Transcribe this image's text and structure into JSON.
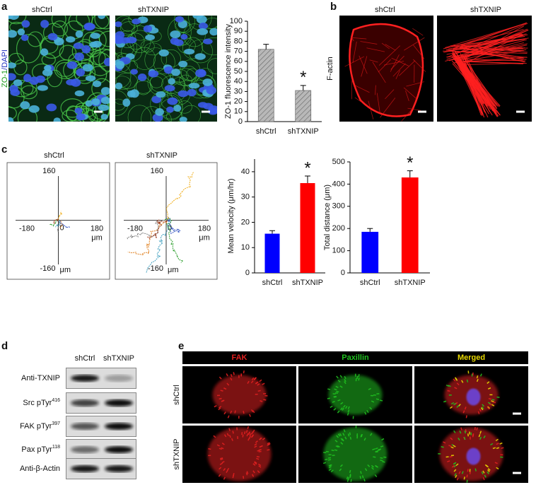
{
  "panel_letters": [
    "a",
    "b",
    "c",
    "d",
    "e"
  ],
  "panel_a": {
    "stain": [
      {
        "text": "ZO-1",
        "color": "#1a9a1a"
      },
      {
        "text": "/DAPI",
        "color": "#2030c0"
      }
    ],
    "image_labels": [
      "shCtrl",
      "shTXNIP"
    ]
  },
  "panel_b": {
    "stain": "F-actin",
    "image_labels": [
      "shCtrl",
      "shTXNIP"
    ]
  },
  "panel_c": {
    "track_plots": [
      {
        "title": "shCtrl",
        "xlim": [
          -180,
          180
        ],
        "ylim": [
          -160,
          160
        ],
        "origin": 0,
        "unit": "μm"
      },
      {
        "title": "shTXNIP",
        "xlim": [
          -180,
          180
        ],
        "ylim": [
          -160,
          160
        ],
        "origin": 0,
        "unit": "μm"
      }
    ]
  },
  "panel_d": {
    "lanes": [
      "shCtrl",
      "shTXNIP"
    ],
    "rows": [
      {
        "name": "Anti-TXNIP"
      },
      {
        "name": "Src pTyr",
        "sup": "416"
      },
      {
        "name": "FAK pTyr",
        "sup": "397"
      },
      {
        "name": "Pax pTyr",
        "sup": "118"
      },
      {
        "name": "Anti-β-Actin"
      }
    ]
  },
  "panel_e": {
    "channels": [
      {
        "name": "FAK",
        "color": "#e02020"
      },
      {
        "name": "Paxillin",
        "color": "#20c020"
      },
      {
        "name": "Merged",
        "color": "#e8d800"
      }
    ],
    "conditions": [
      "shCtrl",
      "shTXNIP"
    ]
  },
  "chart_data": [
    {
      "type": "bar",
      "ylabel": "ZO-1 fluorescence intensity",
      "categories": [
        "shCtrl",
        "shTXNIP"
      ],
      "values": [
        72,
        31
      ],
      "errors": [
        5,
        5
      ],
      "color": "#b8b8b8",
      "hatch": true,
      "ylim": [
        0,
        100
      ],
      "yticks": [
        0,
        10,
        20,
        30,
        40,
        50,
        60,
        70,
        80,
        90,
        100
      ],
      "grid": false,
      "annotations": [
        {
          "text": "*",
          "x": "shTXNIP"
        }
      ]
    },
    {
      "type": "bar",
      "ylabel": "Mean velocity (μm/hr)",
      "categories": [
        "shCtrl",
        "shTXNIP"
      ],
      "values": [
        15.5,
        35.5
      ],
      "errors": [
        1.2,
        2.8
      ],
      "colors": [
        "#0000ff",
        "#ff0000"
      ],
      "hatch": false,
      "ylim": [
        0,
        45
      ],
      "yticks": [
        0,
        10,
        20,
        30,
        40
      ],
      "grid": false,
      "annotations": [
        {
          "text": "*",
          "x": "shTXNIP"
        }
      ]
    },
    {
      "type": "bar",
      "ylabel": "Total distance (μm)",
      "categories": [
        "shCtrl",
        "shTXNIP"
      ],
      "values": [
        185,
        430
      ],
      "errors": [
        15,
        30
      ],
      "colors": [
        "#0000ff",
        "#ff0000"
      ],
      "hatch": false,
      "ylim": [
        0,
        500
      ],
      "yticks": [
        0,
        100,
        200,
        300,
        400,
        500
      ],
      "grid": false,
      "annotations": [
        {
          "text": "*",
          "x": "shTXNIP"
        }
      ]
    }
  ]
}
